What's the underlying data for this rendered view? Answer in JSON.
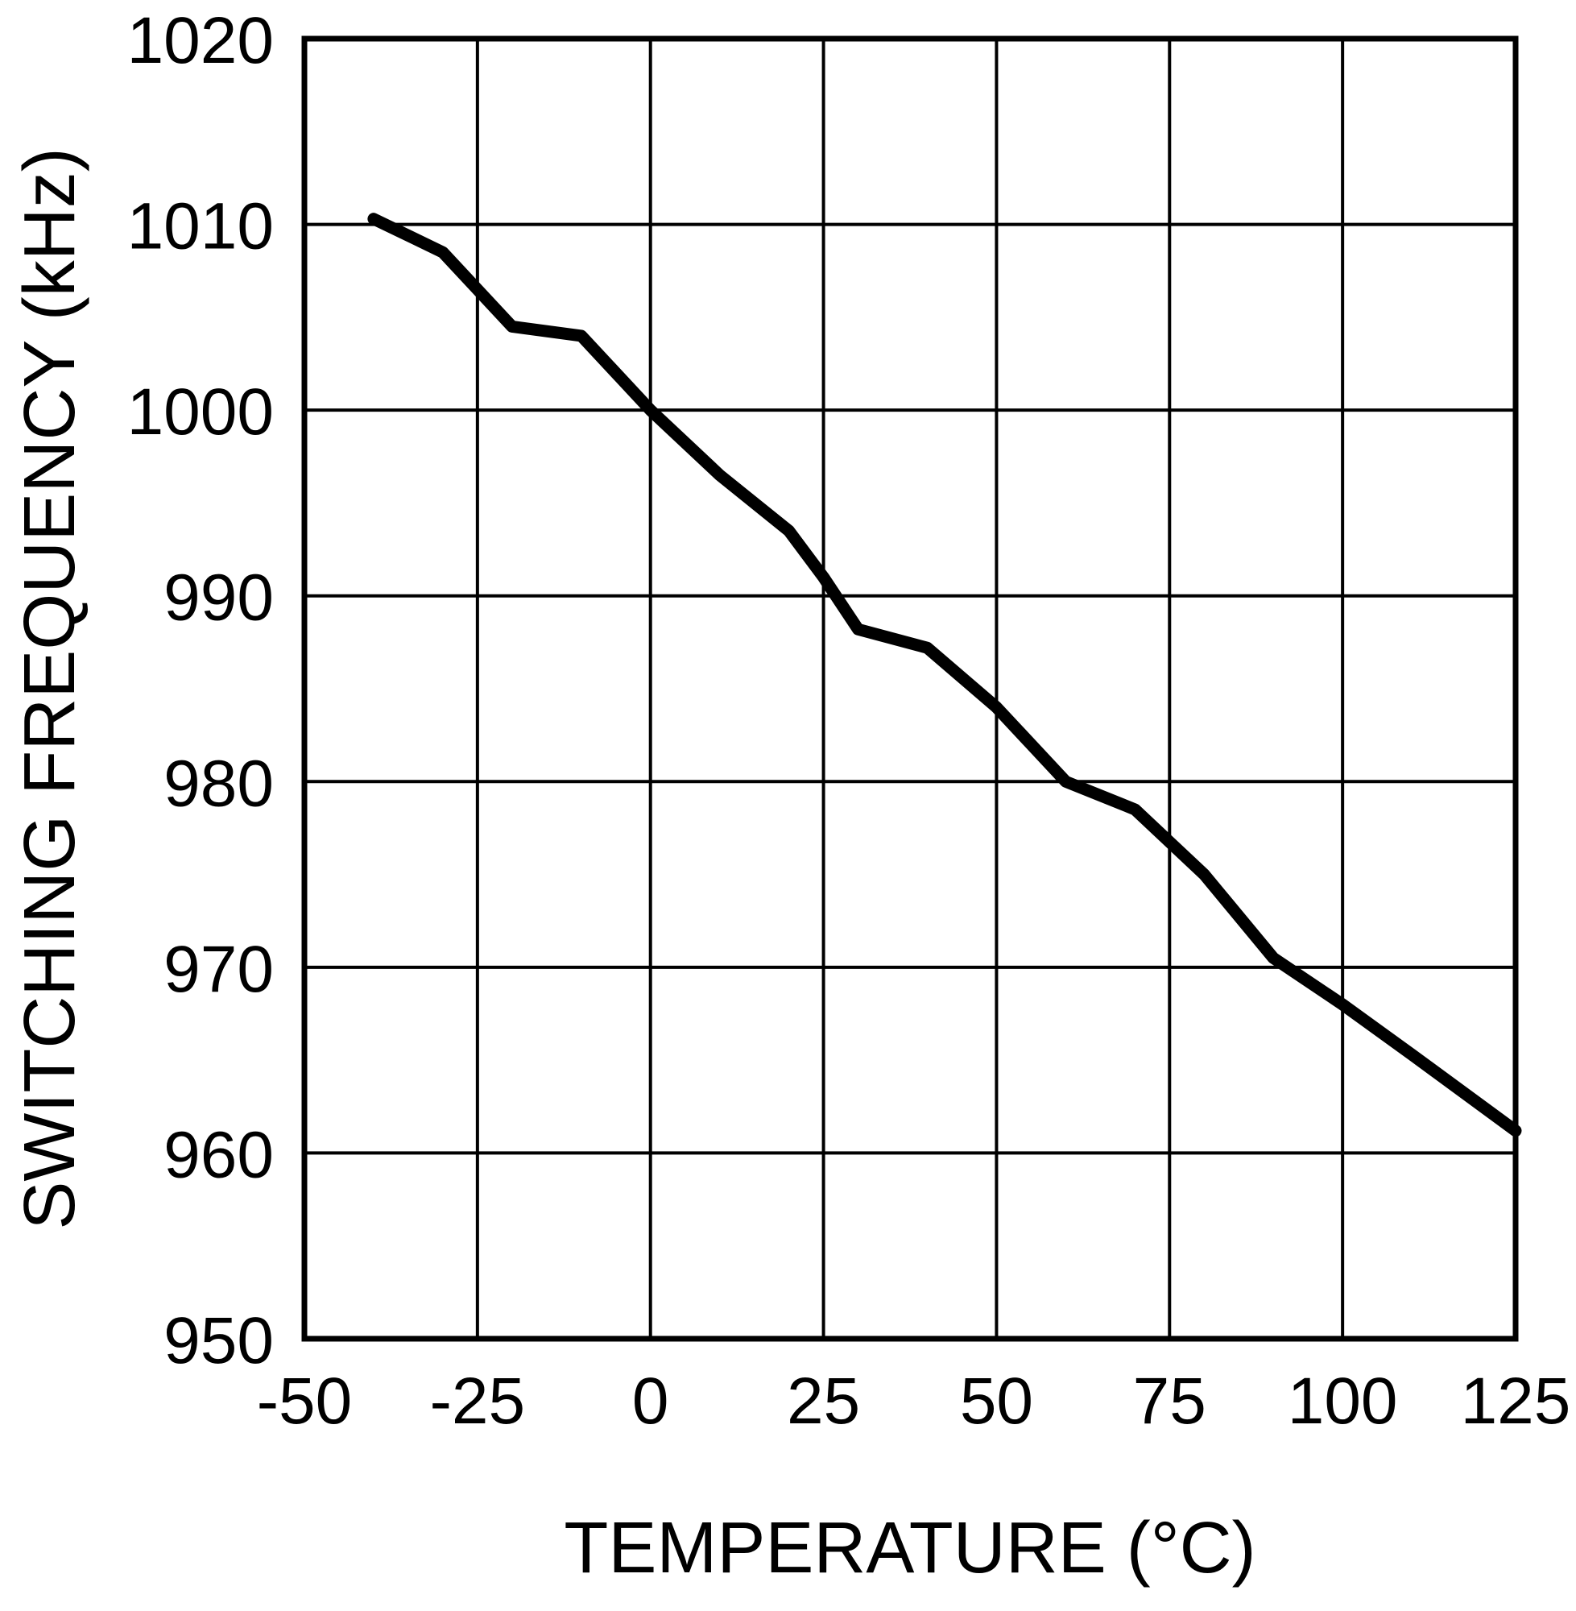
{
  "page": {
    "background": "#ffffff"
  },
  "chart_data": {
    "type": "line",
    "title": "",
    "xlabel": "TEMPERATURE (°C)",
    "ylabel": "SWITCHING FREQUENCY (kHz)",
    "xlim": [
      -50,
      125
    ],
    "ylim": [
      950,
      1020
    ],
    "x_ticks": [
      -50,
      -25,
      0,
      25,
      50,
      75,
      100,
      125
    ],
    "y_ticks": [
      950,
      960,
      970,
      980,
      990,
      1000,
      1010,
      1020
    ],
    "grid": true,
    "legend": "none",
    "line_color": "#000000",
    "grid_color": "#000000",
    "series": [
      {
        "name": "switching-frequency-vs-temperature",
        "x": [
          -40,
          -30,
          -20,
          -10,
          0,
          10,
          20,
          25,
          30,
          40,
          50,
          60,
          70,
          80,
          90,
          100,
          110,
          125
        ],
        "y": [
          1010.3,
          1008.5,
          1004.5,
          1004.0,
          1000.0,
          996.5,
          993.5,
          991.0,
          988.2,
          987.2,
          984.0,
          980.0,
          978.5,
          975.0,
          970.5,
          968.0,
          965.3,
          961.2
        ]
      }
    ]
  }
}
